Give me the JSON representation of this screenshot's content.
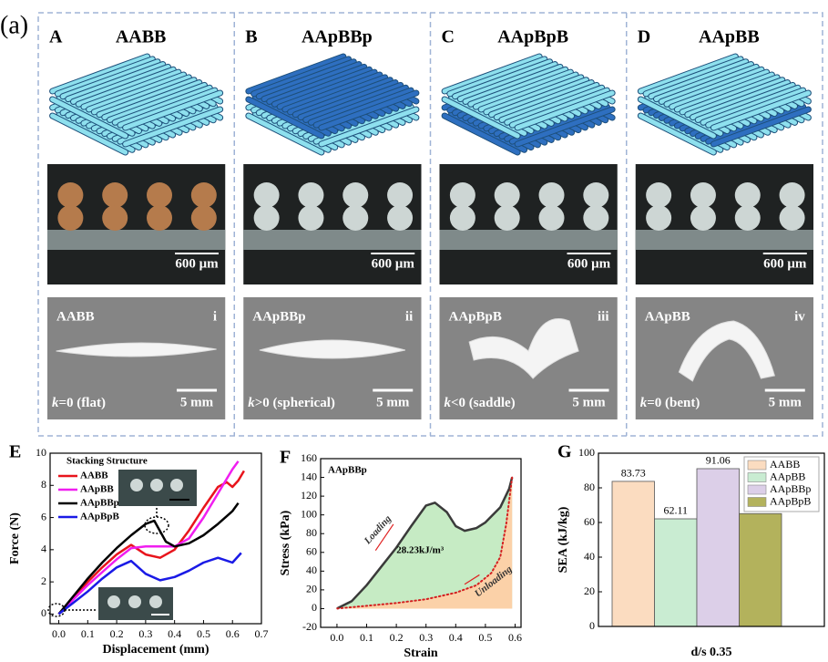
{
  "panel_a": {
    "label": "(a)",
    "columns": [
      {
        "letter": "A",
        "title": "AABB",
        "micro_scale": "600 μm",
        "photo_label": "AABB",
        "photo_index": "i",
        "curvature_symbol": "k",
        "curvature": "=0 (flat)",
        "photo_scale": "5 mm"
      },
      {
        "letter": "B",
        "title": "AApBBp",
        "micro_scale": "600 μm",
        "photo_label": "AApBBp",
        "photo_index": "ii",
        "curvature_symbol": "k",
        "curvature": ">0 (spherical)",
        "photo_scale": "5 mm"
      },
      {
        "letter": "C",
        "title": "AApBpB",
        "micro_scale": "600 μm",
        "photo_label": "AApBpB",
        "photo_index": "iii",
        "curvature_symbol": "k",
        "curvature": "<0 (saddle)",
        "photo_scale": "5 mm"
      },
      {
        "letter": "D",
        "title": "AApBB",
        "micro_scale": "600 μm",
        "photo_label": "AApBB",
        "photo_index": "iv",
        "curvature_symbol": "k",
        "curvature": "=0 (bent)",
        "photo_scale": "5 mm"
      }
    ]
  },
  "chart_data": [
    {
      "panel": "E",
      "type": "line",
      "xlabel": "Displacement (mm)",
      "ylabel": "Force (N)",
      "legend_title": "Stacking Structure",
      "xlim": [
        -0.03,
        0.7
      ],
      "xticks": [
        {
          "value": 0,
          "label": "0.0"
        },
        0.1,
        0.2,
        0.3,
        0.4,
        0.5,
        0.6,
        0.7
      ],
      "ylim": [
        -0.6,
        10
      ],
      "yticks": [
        0,
        2,
        4,
        6,
        8,
        10
      ],
      "series": [
        {
          "name": "AABB",
          "color": "#e8141c",
          "x": [
            0,
            0.05,
            0.1,
            0.15,
            0.2,
            0.25,
            0.3,
            0.35,
            0.4,
            0.45,
            0.5,
            0.55,
            0.58,
            0.6,
            0.62,
            0.64
          ],
          "values": [
            0,
            1.0,
            2.0,
            2.9,
            3.7,
            4.3,
            3.7,
            3.5,
            4.0,
            5.2,
            6.6,
            7.9,
            8.2,
            7.9,
            8.3,
            8.9
          ]
        },
        {
          "name": "AApBB",
          "color": "#f01ef0",
          "x": [
            0,
            0.05,
            0.1,
            0.15,
            0.2,
            0.25,
            0.3,
            0.35,
            0.4,
            0.45,
            0.5,
            0.55,
            0.6,
            0.62
          ],
          "values": [
            0,
            0.9,
            1.8,
            2.6,
            3.4,
            4.1,
            4.2,
            4.2,
            4.2,
            4.7,
            6.0,
            7.5,
            9.0,
            9.5
          ]
        },
        {
          "name": "AApBBp",
          "color": "#000000",
          "x": [
            0,
            0.05,
            0.1,
            0.15,
            0.2,
            0.25,
            0.3,
            0.33,
            0.37,
            0.4,
            0.45,
            0.5,
            0.55,
            0.6,
            0.62
          ],
          "values": [
            0,
            1.1,
            2.2,
            3.2,
            4.1,
            4.9,
            5.6,
            5.8,
            4.5,
            4.2,
            4.4,
            4.9,
            5.6,
            6.4,
            6.9
          ]
        },
        {
          "name": "AApBpB",
          "color": "#1a1ae6",
          "x": [
            0,
            0.05,
            0.1,
            0.15,
            0.2,
            0.25,
            0.3,
            0.35,
            0.4,
            0.45,
            0.5,
            0.55,
            0.6,
            0.63
          ],
          "values": [
            0,
            0.7,
            1.4,
            2.2,
            2.9,
            3.3,
            2.5,
            2.1,
            2.3,
            2.7,
            3.2,
            3.5,
            3.2,
            3.8
          ]
        }
      ]
    },
    {
      "panel": "F",
      "type": "line",
      "xlabel": "Strain",
      "ylabel": "Stress (kPa)",
      "label": "AApBBp",
      "annotation": "28.23kJ/m³",
      "xlim": [
        -0.055,
        0.62
      ],
      "xticks": [
        {
          "value": 0,
          "label": "0.0"
        },
        0.1,
        0.2,
        0.3,
        0.4,
        0.5,
        0.6
      ],
      "ylim": [
        -20,
        160
      ],
      "yticks": [
        -20,
        0,
        20,
        40,
        60,
        80,
        100,
        120,
        140,
        160
      ],
      "series": [
        {
          "name": "Loading",
          "color": "#3a3a3a",
          "fill": "#c6ebc4",
          "x": [
            0,
            0.05,
            0.1,
            0.15,
            0.2,
            0.25,
            0.3,
            0.33,
            0.37,
            0.4,
            0.43,
            0.47,
            0.5,
            0.55,
            0.58,
            0.59
          ],
          "values": [
            0,
            8,
            25,
            45,
            65,
            88,
            110,
            113,
            103,
            88,
            83,
            86,
            92,
            108,
            128,
            140
          ]
        },
        {
          "name": "Unloading",
          "color": "#d42020",
          "fill": "#fbd1a8",
          "dotted": true,
          "x": [
            0.59,
            0.57,
            0.55,
            0.52,
            0.47,
            0.4,
            0.3,
            0.2,
            0.1,
            0
          ],
          "values": [
            140,
            90,
            55,
            38,
            25,
            17,
            10,
            6,
            3,
            0
          ]
        }
      ]
    },
    {
      "panel": "G",
      "type": "bar",
      "xlabel": "d/s 0.35",
      "ylabel": "SEA (kJ/kg)",
      "categories": [
        "AABB",
        "AApBB",
        "AApBBp",
        "AApBpB"
      ],
      "values": [
        83.73,
        62.11,
        91.06,
        65.12
      ],
      "colors": [
        "#fbdcc0",
        "#c9ecd2",
        "#dccfe8",
        "#b3b25c"
      ],
      "ylim": [
        0,
        100
      ],
      "yticks": [
        0,
        20,
        40,
        60,
        80,
        100
      ],
      "legend": "upper right"
    }
  ]
}
